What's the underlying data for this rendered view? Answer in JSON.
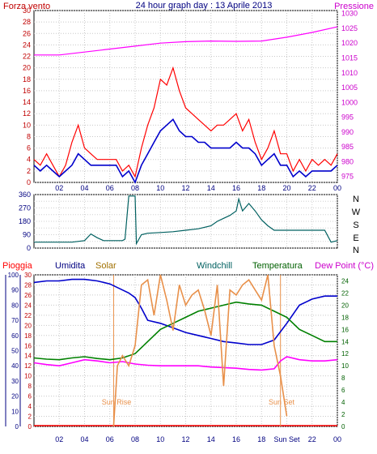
{
  "header": {
    "title": "24 hour graph day : 13 Aprile 2013",
    "left_label": "Forza vento",
    "right_label": "Pressione"
  },
  "panel2": {
    "compass": [
      "N",
      "W",
      "S",
      "E",
      "N"
    ]
  },
  "panel3": {
    "labels": {
      "pioggia": "Pioggia",
      "umidita": "Umidita",
      "solar": "Solar",
      "windchill": "Windchill",
      "temperatura": "Temperatura",
      "dewpoint": "Dew Point (°C)"
    },
    "annotations": {
      "sunrise": "Sun Rise",
      "sunset": "Sun Set"
    }
  },
  "colors": {
    "red": "#ff0000",
    "darkred": "#c00000",
    "blue": "#0000cc",
    "navy": "#000080",
    "magenta": "#ff00ff",
    "orange": "#e8904a",
    "green": "#008000",
    "teal": "#006060",
    "darkgreen": "#006000"
  },
  "chart_data": [
    {
      "type": "line",
      "panel": "wind",
      "xlim": [
        0,
        24
      ],
      "x_tick_labels": [
        "02",
        "04",
        "06",
        "08",
        "10",
        "12",
        "14",
        "16",
        "18",
        "20",
        "22",
        "00"
      ],
      "y_left": {
        "ticks": [
          0,
          2,
          4,
          6,
          8,
          10,
          12,
          14,
          16,
          18,
          20,
          22,
          24,
          26,
          28,
          30
        ],
        "ylim": [
          0,
          30
        ]
      },
      "y_right": {
        "ticks": [
          975,
          980,
          985,
          990,
          995,
          1000,
          1005,
          1010,
          1015,
          1020,
          1025,
          1030
        ],
        "ylim": [
          973,
          1031
        ]
      },
      "series": [
        {
          "name": "Forza vento",
          "color": "#ff0000",
          "axis": "left",
          "x": [
            0,
            0.5,
            1,
            1.5,
            2,
            2.5,
            3,
            3.5,
            4,
            4.5,
            5,
            5.5,
            6,
            6.5,
            7,
            7.5,
            8,
            8.5,
            9,
            9.5,
            10,
            10.5,
            11,
            11.5,
            12,
            12.5,
            13,
            13.5,
            14,
            14.5,
            15,
            15.5,
            16,
            16.5,
            17,
            17.5,
            18,
            18.5,
            19,
            19.5,
            20,
            20.5,
            21,
            21.5,
            22,
            22.5,
            23,
            23.5,
            24
          ],
          "values": [
            4,
            3,
            5,
            3,
            1,
            3,
            7,
            10,
            6,
            5,
            4,
            4,
            4,
            4,
            2,
            3,
            1,
            6,
            10,
            13,
            18,
            17,
            20,
            16,
            13,
            12,
            11,
            10,
            9,
            10,
            10,
            11,
            12,
            9,
            11,
            7,
            4,
            6,
            9,
            5,
            5,
            2,
            4,
            2,
            4,
            3,
            4,
            3,
            5
          ]
        },
        {
          "name": "",
          "color": "#0000cc",
          "axis": "left",
          "x": [
            0,
            0.5,
            1,
            1.5,
            2,
            2.5,
            3,
            3.5,
            4,
            4.5,
            5,
            5.5,
            6,
            6.5,
            7,
            7.5,
            8,
            8.5,
            9,
            9.5,
            10,
            10.5,
            11,
            11.5,
            12,
            12.5,
            13,
            13.5,
            14,
            14.5,
            15,
            15.5,
            16,
            16.5,
            17,
            17.5,
            18,
            18.5,
            19,
            19.5,
            20,
            20.5,
            21,
            21.5,
            22,
            22.5,
            23,
            23.5,
            24
          ],
          "values": [
            3,
            2,
            3,
            2,
            1,
            2,
            3,
            5,
            4,
            3,
            3,
            3,
            3,
            3,
            1,
            2,
            0,
            3,
            5,
            7,
            9,
            10,
            11,
            9,
            8,
            8,
            7,
            7,
            6,
            6,
            6,
            6,
            7,
            6,
            6,
            5,
            3,
            4,
            5,
            3,
            3,
            1,
            2,
            1,
            2,
            2,
            2,
            2,
            3
          ]
        },
        {
          "name": "Pressione",
          "color": "#ff00ff",
          "axis": "right",
          "x": [
            0,
            2,
            4,
            6,
            8,
            10,
            12,
            14,
            16,
            18,
            20,
            22,
            24
          ],
          "values": [
            1016,
            1016,
            1017,
            1018,
            1019,
            1020,
            1020.5,
            1020.7,
            1020.6,
            1020.7,
            1022,
            1023.6,
            1025.5
          ]
        }
      ]
    },
    {
      "type": "line",
      "panel": "wind_direction",
      "xlim": [
        0,
        24
      ],
      "y_left": {
        "ticks": [
          0,
          45,
          90,
          135,
          180,
          225,
          270,
          315,
          360
        ],
        "ylim": [
          0,
          360
        ]
      },
      "series": [
        {
          "name": "",
          "color": "#006060",
          "x": [
            0,
            1,
            2,
            3,
            4,
            4.5,
            5,
            5.5,
            6,
            6.5,
            7,
            7.2,
            7.5,
            8,
            8.1,
            8.5,
            9,
            10,
            11,
            12,
            13,
            14,
            14.5,
            15,
            15.5,
            16,
            16.2,
            16.5,
            17,
            17.5,
            18,
            18.5,
            19,
            20,
            21,
            22,
            23,
            23.5,
            24
          ],
          "values": [
            40,
            40,
            40,
            40,
            50,
            95,
            70,
            50,
            50,
            50,
            50,
            60,
            350,
            350,
            30,
            90,
            100,
            105,
            110,
            120,
            130,
            150,
            180,
            200,
            220,
            250,
            330,
            250,
            300,
            250,
            190,
            150,
            120,
            120,
            120,
            120,
            120,
            40,
            50
          ]
        }
      ]
    },
    {
      "type": "line",
      "panel": "temperature_humidity",
      "xlim": [
        0,
        24
      ],
      "x_tick_labels": [
        "02",
        "04",
        "06",
        "08",
        "10",
        "12",
        "14",
        "16",
        "18",
        "Sun Set",
        "22",
        "00"
      ],
      "y_humidity": {
        "ticks": [
          0,
          10,
          20,
          30,
          40,
          50,
          60,
          70,
          80,
          90,
          100
        ],
        "ylim": [
          0,
          100
        ]
      },
      "y_rain": {
        "ticks": [
          0,
          2,
          4,
          6,
          8,
          10,
          12,
          14,
          16,
          18,
          20,
          22,
          24,
          26,
          28,
          30
        ],
        "ylim": [
          0,
          30
        ]
      },
      "y_temp": {
        "ticks": [
          0,
          2,
          4,
          6,
          8,
          10,
          12,
          14,
          16,
          18,
          20,
          22,
          24
        ],
        "ylim": [
          0,
          25
        ]
      },
      "series": [
        {
          "name": "Umidita",
          "color": "#0000cc",
          "axis": "humidity",
          "x": [
            0,
            1,
            2,
            3,
            4,
            5,
            6,
            7,
            7.5,
            8,
            8.5,
            9,
            10,
            11,
            12,
            13,
            14,
            15,
            16,
            17,
            18,
            19,
            20,
            21,
            22,
            23,
            24
          ],
          "values": [
            95,
            96,
            96,
            97,
            97,
            96,
            94,
            90,
            88,
            85,
            78,
            70,
            68,
            65,
            62,
            60,
            58,
            56,
            55,
            54,
            54,
            57,
            68,
            80,
            84,
            86,
            86
          ]
        },
        {
          "name": "Temperatura",
          "color": "#008000",
          "axis": "temp",
          "x": [
            0,
            1,
            2,
            3,
            4,
            5,
            6,
            7,
            8,
            8.5,
            9,
            10,
            11,
            12,
            13,
            14,
            15,
            16,
            17,
            18,
            19,
            20,
            21,
            22,
            23,
            24
          ],
          "values": [
            11.3,
            11.1,
            11,
            11.3,
            11.5,
            11.2,
            11,
            11.3,
            12,
            13,
            14,
            16,
            17,
            18,
            19,
            19.5,
            20,
            20.5,
            20.2,
            20,
            19,
            18,
            16,
            15,
            14,
            14
          ]
        },
        {
          "name": "Dew Point (°C)",
          "color": "#ff00ff",
          "axis": "temp",
          "x": [
            0,
            1,
            2,
            3,
            4,
            5,
            6,
            7,
            8,
            9,
            10,
            11,
            12,
            13,
            14,
            15,
            16,
            17,
            18,
            19,
            19.5,
            20,
            21,
            22,
            23,
            24
          ],
          "values": [
            10.5,
            10.2,
            10,
            10.5,
            11,
            10.8,
            10.5,
            10.7,
            10.3,
            10.1,
            10,
            10,
            10,
            10,
            9.8,
            9.7,
            9.6,
            9.4,
            9.3,
            9.5,
            10.8,
            11.5,
            11,
            10.8,
            10.8,
            11
          ]
        },
        {
          "name": "Solar",
          "color": "#e8904a",
          "axis": "rain",
          "x": [
            6.3,
            6.6,
            7,
            7.5,
            8,
            8.5,
            9,
            9.5,
            10,
            10.5,
            11,
            11.5,
            12,
            12.5,
            13,
            13.5,
            14,
            14.5,
            15,
            15.5,
            16,
            16.5,
            17,
            17.5,
            18,
            18.5,
            19,
            19.5,
            20
          ],
          "values": [
            0,
            12,
            14,
            12,
            16,
            28,
            29,
            22,
            30,
            25,
            19,
            28,
            24,
            26,
            27,
            23,
            18,
            28,
            8,
            27,
            26,
            28,
            29,
            27,
            25,
            30,
            16,
            10,
            2
          ]
        }
      ],
      "markers": {
        "sunrise_x": 6.3,
        "sunset_x": 19.5
      }
    }
  ]
}
